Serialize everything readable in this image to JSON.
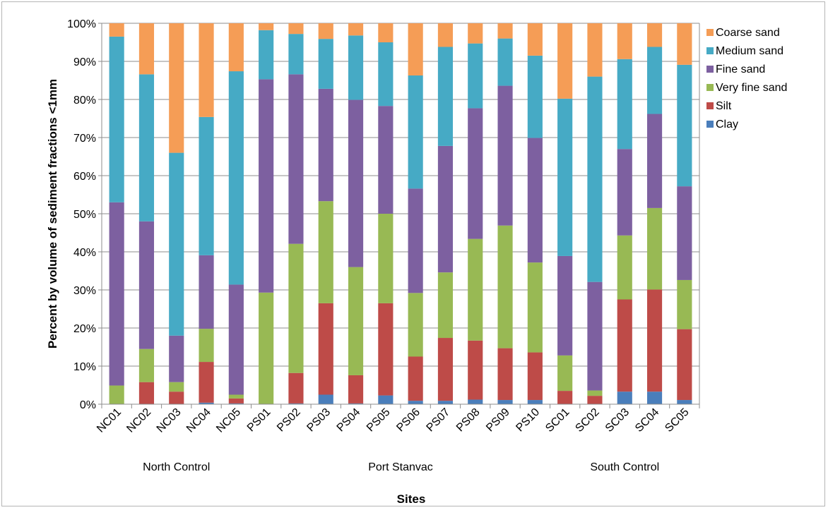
{
  "chart_data": {
    "type": "bar",
    "stacked": true,
    "percent": true,
    "title": "",
    "xlabel": "Sites",
    "ylabel": "Percent by volume of sediment fractions <1mm",
    "ylim": [
      0,
      100
    ],
    "yticks": [
      "0%",
      "10%",
      "20%",
      "30%",
      "40%",
      "50%",
      "60%",
      "70%",
      "80%",
      "90%",
      "100%"
    ],
    "grid": "horizontal",
    "legend_position": "right",
    "categories": [
      "NC01",
      "NC02",
      "NC03",
      "NC04",
      "NC05",
      "PS01",
      "PS02",
      "PS03",
      "PS04",
      "PS05",
      "PS06",
      "PS07",
      "PS08",
      "PS09",
      "PS10",
      "SC01",
      "SC02",
      "SC03",
      "SC04",
      "SC05"
    ],
    "groups": [
      {
        "label": "North Control",
        "from": 0,
        "to": 4
      },
      {
        "label": "Port Stanvac",
        "from": 5,
        "to": 14
      },
      {
        "label": "South Control",
        "from": 15,
        "to": 19
      }
    ],
    "series": [
      {
        "name": "Clay",
        "color": "#4a7ebb",
        "values": [
          0,
          0,
          0,
          0.4,
          0.2,
          0,
          0.2,
          2.5,
          0.2,
          2.3,
          0.9,
          0.9,
          1.2,
          1.1,
          1.1,
          0,
          0,
          3.3,
          3.3,
          1.1
        ]
      },
      {
        "name": "Silt",
        "color": "#be4b48",
        "values": [
          0,
          5.8,
          3.3,
          10.7,
          1.3,
          0,
          8.0,
          24.0,
          7.4,
          24.2,
          11.6,
          16.5,
          15.5,
          13.6,
          12.5,
          3.5,
          2.2,
          24.2,
          26.8,
          18.6
        ]
      },
      {
        "name": "Very fine sand",
        "color": "#98b954",
        "values": [
          4.9,
          8.7,
          2.5,
          8.7,
          1.0,
          29.3,
          33.9,
          26.8,
          28.4,
          23.5,
          16.7,
          17.2,
          26.7,
          32.2,
          23.6,
          9.3,
          1.4,
          16.8,
          21.4,
          12.9
        ]
      },
      {
        "name": "Fine sand",
        "color": "#7d60a0",
        "values": [
          48.1,
          33.5,
          12.2,
          19.3,
          28.9,
          56.0,
          44.5,
          29.5,
          43.9,
          28.3,
          27.4,
          33.2,
          34.3,
          36.7,
          32.7,
          26.1,
          28.5,
          22.7,
          24.7,
          24.6
        ]
      },
      {
        "name": "Medium sand",
        "color": "#46aac5",
        "values": [
          43.5,
          38.6,
          48.0,
          36.3,
          56.0,
          12.9,
          10.6,
          13.1,
          16.9,
          16.7,
          29.7,
          26.0,
          17.0,
          12.4,
          21.6,
          41.3,
          53.9,
          23.6,
          17.6,
          31.9
        ]
      },
      {
        "name": "Coarse sand",
        "color": "#f59d56",
        "values": [
          3.5,
          13.4,
          34.0,
          24.6,
          12.6,
          1.8,
          2.8,
          4.1,
          3.2,
          5.0,
          13.7,
          6.2,
          5.3,
          4.0,
          8.5,
          19.8,
          14.0,
          9.4,
          6.2,
          10.9
        ]
      }
    ]
  }
}
